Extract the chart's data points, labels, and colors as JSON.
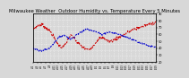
{
  "title": "Milwaukee Weather  Outdoor Humidity vs. Temperature Every 5 Minutes",
  "bg_color": "#d8d8d8",
  "grid_color": "#ffffff",
  "temp_color": "#cc0000",
  "humidity_color": "#0000cc",
  "right_yticks": [
    90,
    80,
    70,
    60,
    50,
    40,
    30,
    20
  ],
  "right_ylim": [
    20,
    90
  ],
  "title_fontsize": 3.8,
  "temp_data": [
    68,
    72,
    74,
    70,
    65,
    55,
    45,
    42,
    50,
    58,
    52,
    45,
    40,
    38,
    42,
    50,
    55,
    53,
    50,
    52,
    55,
    58,
    62,
    65,
    68,
    70,
    72,
    74,
    76,
    78
  ],
  "hum_data": [
    28,
    25,
    23,
    25,
    30,
    40,
    50,
    55,
    52,
    48,
    55,
    60,
    65,
    68,
    65,
    62,
    58,
    60,
    62,
    60,
    58,
    55,
    52,
    48,
    45,
    40,
    38,
    35,
    32,
    30
  ]
}
